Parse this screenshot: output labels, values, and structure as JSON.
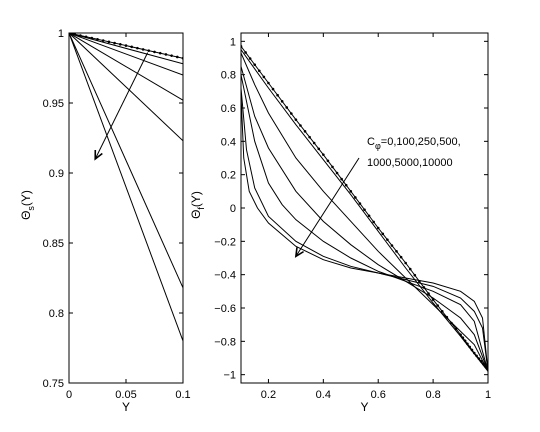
{
  "chart_data": [
    {
      "type": "line",
      "panel": "left",
      "xlabel": "Y",
      "ylabel_main": "Θ",
      "ylabel_sub": "s",
      "ylabel_tail": "(Y)",
      "xlim": [
        0,
        0.1
      ],
      "ylim": [
        0.75,
        1.0
      ],
      "xticks": [
        0,
        0.05,
        0.1
      ],
      "xtick_labels": [
        "0",
        "0.05",
        "0.1"
      ],
      "yticks": [
        0.75,
        0.8,
        0.85,
        0.9,
        0.95,
        1.0
      ],
      "ytick_labels": [
        "0.75",
        "0.8",
        "0.85",
        "0.9",
        "0.95",
        "1"
      ],
      "grid": false,
      "series": [
        {
          "marker": "dot",
          "points": [
            [
              0,
              1.0
            ],
            [
              0.1,
              0.982
            ]
          ]
        },
        {
          "points": [
            [
              0,
              1.0
            ],
            [
              0.1,
              0.978
            ]
          ]
        },
        {
          "points": [
            [
              0,
              1.0
            ],
            [
              0.1,
              0.97
            ]
          ]
        },
        {
          "points": [
            [
              0,
              1.0
            ],
            [
              0.1,
              0.952
            ]
          ]
        },
        {
          "points": [
            [
              0,
              1.0
            ],
            [
              0.1,
              0.923
            ]
          ]
        },
        {
          "points": [
            [
              0,
              1.0
            ],
            [
              0.1,
              0.818
            ]
          ]
        },
        {
          "points": [
            [
              0,
              1.0
            ],
            [
              0.1,
              0.78
            ]
          ]
        }
      ],
      "arrow": {
        "from": [
          0.069,
          0.986
        ],
        "to": [
          0.023,
          0.91
        ]
      }
    },
    {
      "type": "line",
      "panel": "right",
      "xlabel": "Y",
      "ylabel_main": "Θ",
      "ylabel_sub": "f",
      "ylabel_tail": "(Y)",
      "xlim": [
        0.1,
        1.0
      ],
      "ylim": [
        -1.05,
        1.05
      ],
      "xticks": [
        0.2,
        0.4,
        0.6,
        0.8,
        1.0
      ],
      "xtick_labels": [
        "0.2",
        "0.4",
        "0.6",
        "0.8",
        "1"
      ],
      "yticks": [
        -1,
        -0.8,
        -0.6,
        -0.4,
        -0.2,
        0,
        0.2,
        0.4,
        0.6,
        0.8,
        1
      ],
      "ytick_labels": [
        "−1",
        "−0.8",
        "−0.6",
        "−0.4",
        "−0.2",
        "0",
        "0.2",
        "0.4",
        "0.6",
        "0.8",
        "1"
      ],
      "grid": false,
      "annotation_line1_main": "C",
      "annotation_line1_sub": "φ",
      "annotation_line1_tail": "=0,100,250,500,",
      "annotation_line2": "1000,5000,10000",
      "series": [
        {
          "marker": "dot",
          "points": [
            [
              0.1,
              0.97
            ],
            [
              0.2,
              0.75
            ],
            [
              0.3,
              0.53
            ],
            [
              0.4,
              0.32
            ],
            [
              0.5,
              0.1
            ],
            [
              0.6,
              -0.12
            ],
            [
              0.7,
              -0.33
            ],
            [
              0.8,
              -0.55
            ],
            [
              0.9,
              -0.76
            ],
            [
              0.95,
              -0.87
            ],
            [
              1.0,
              -0.97
            ]
          ]
        },
        {
          "points": [
            [
              0.1,
              0.95
            ],
            [
              0.2,
              0.72
            ],
            [
              0.3,
              0.5
            ],
            [
              0.4,
              0.29
            ],
            [
              0.5,
              0.08
            ],
            [
              0.6,
              -0.14
            ],
            [
              0.7,
              -0.36
            ],
            [
              0.8,
              -0.57
            ],
            [
              0.9,
              -0.77
            ],
            [
              1.0,
              -0.98
            ]
          ]
        },
        {
          "points": [
            [
              0.1,
              0.93
            ],
            [
              0.15,
              0.74
            ],
            [
              0.2,
              0.57
            ],
            [
              0.3,
              0.3
            ],
            [
              0.4,
              0.1
            ],
            [
              0.5,
              -0.08
            ],
            [
              0.6,
              -0.26
            ],
            [
              0.7,
              -0.42
            ],
            [
              0.8,
              -0.58
            ],
            [
              0.9,
              -0.74
            ],
            [
              0.95,
              -0.82
            ],
            [
              1.0,
              -0.98
            ]
          ]
        },
        {
          "points": [
            [
              0.1,
              0.85
            ],
            [
              0.15,
              0.55
            ],
            [
              0.2,
              0.36
            ],
            [
              0.3,
              0.1
            ],
            [
              0.4,
              -0.08
            ],
            [
              0.5,
              -0.22
            ],
            [
              0.6,
              -0.34
            ],
            [
              0.7,
              -0.44
            ],
            [
              0.8,
              -0.54
            ],
            [
              0.9,
              -0.66
            ],
            [
              0.95,
              -0.76
            ],
            [
              1.0,
              -0.98
            ]
          ]
        },
        {
          "points": [
            [
              0.1,
              0.8
            ],
            [
              0.15,
              0.4
            ],
            [
              0.2,
              0.15
            ],
            [
              0.25,
              0.02
            ],
            [
              0.3,
              -0.07
            ],
            [
              0.4,
              -0.2
            ],
            [
              0.5,
              -0.3
            ],
            [
              0.6,
              -0.38
            ],
            [
              0.7,
              -0.44
            ],
            [
              0.8,
              -0.5
            ],
            [
              0.9,
              -0.58
            ],
            [
              0.95,
              -0.68
            ],
            [
              1.0,
              -0.98
            ]
          ]
        },
        {
          "points": [
            [
              0.1,
              0.72
            ],
            [
              0.12,
              0.35
            ],
            [
              0.15,
              0.12
            ],
            [
              0.2,
              -0.05
            ],
            [
              0.3,
              -0.2
            ],
            [
              0.4,
              -0.29
            ],
            [
              0.5,
              -0.35
            ],
            [
              0.6,
              -0.39
            ],
            [
              0.7,
              -0.43
            ],
            [
              0.8,
              -0.47
            ],
            [
              0.9,
              -0.54
            ],
            [
              0.95,
              -0.62
            ],
            [
              0.98,
              -0.72
            ],
            [
              1.0,
              -0.98
            ]
          ]
        },
        {
          "points": [
            [
              0.1,
              0.68
            ],
            [
              0.11,
              0.3
            ],
            [
              0.13,
              0.1
            ],
            [
              0.16,
              0.0
            ],
            [
              0.2,
              -0.09
            ],
            [
              0.3,
              -0.23
            ],
            [
              0.4,
              -0.31
            ],
            [
              0.5,
              -0.36
            ],
            [
              0.6,
              -0.39
            ],
            [
              0.7,
              -0.42
            ],
            [
              0.8,
              -0.45
            ],
            [
              0.9,
              -0.5
            ],
            [
              0.95,
              -0.56
            ],
            [
              0.98,
              -0.66
            ],
            [
              1.0,
              -0.98
            ]
          ]
        }
      ],
      "arrow": {
        "from": [
          0.53,
          0.3
        ],
        "to": [
          0.3,
          -0.29
        ]
      }
    }
  ]
}
